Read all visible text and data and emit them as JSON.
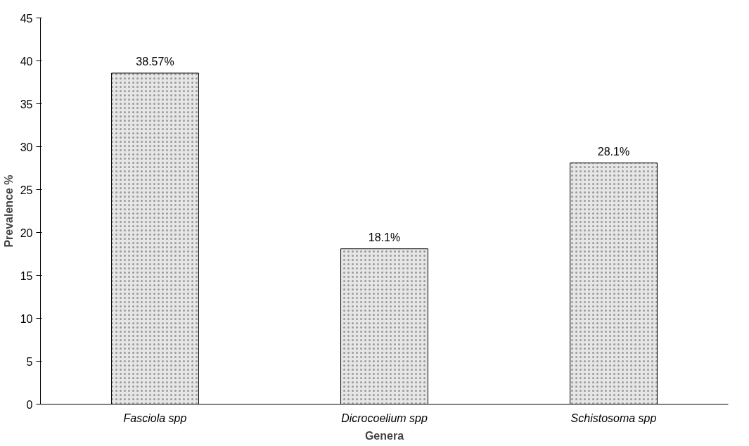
{
  "chart_data": {
    "type": "bar",
    "categories": [
      "Fasciola spp",
      "Dicrocoelium spp",
      "Schistosoma spp"
    ],
    "values": [
      38.57,
      18.1,
      28.1
    ],
    "value_labels": [
      "38.57%",
      "18.1%",
      "28.1%"
    ],
    "color": "#e6e6e6",
    "xlabel": "Genera",
    "ylabel": "Prevalence %",
    "ylim": [
      0,
      45
    ],
    "yticks": [
      0,
      5,
      10,
      15,
      20,
      25,
      30,
      35,
      40,
      45
    ],
    "grid": false
  }
}
